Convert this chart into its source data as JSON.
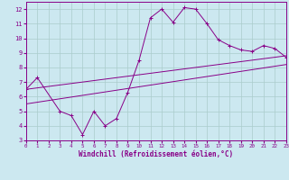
{
  "xlabel": "Windchill (Refroidissement éolien,°C)",
  "background_color": "#cce8f0",
  "grid_color": "#aacccc",
  "line_color": "#880088",
  "xlim": [
    0,
    23
  ],
  "ylim": [
    3,
    12.5
  ],
  "xticks": [
    0,
    1,
    2,
    3,
    4,
    5,
    6,
    7,
    8,
    9,
    10,
    11,
    12,
    13,
    14,
    15,
    16,
    17,
    18,
    19,
    20,
    21,
    22,
    23
  ],
  "yticks": [
    3,
    4,
    5,
    6,
    7,
    8,
    9,
    10,
    11,
    12
  ],
  "main_x": [
    0,
    1,
    3,
    4,
    5,
    6,
    7,
    8,
    9,
    10,
    11,
    12,
    13,
    14,
    15,
    16,
    17,
    18,
    19,
    20,
    21,
    22,
    23
  ],
  "main_y": [
    6.5,
    7.3,
    5.0,
    4.7,
    3.4,
    5.0,
    4.0,
    4.5,
    6.3,
    8.5,
    11.4,
    12.0,
    11.1,
    12.1,
    12.0,
    11.0,
    9.9,
    9.5,
    9.2,
    9.1,
    9.5,
    9.3,
    8.7
  ],
  "line1_x": [
    0,
    23
  ],
  "line1_y": [
    6.5,
    8.8
  ],
  "line2_x": [
    0,
    23
  ],
  "line2_y": [
    5.5,
    8.2
  ]
}
